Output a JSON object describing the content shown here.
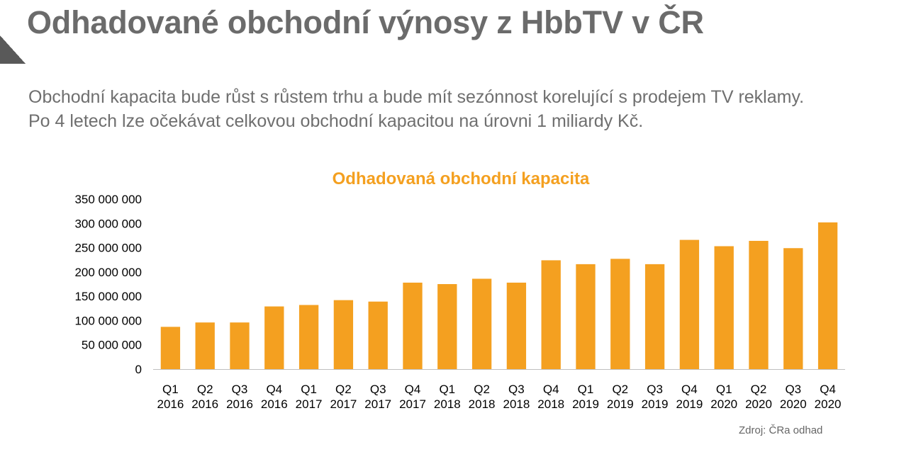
{
  "slide": {
    "title": "Odhadované obchodní výnosy z HbbTV v ČR",
    "subtitle_line1": "Obchodní kapacita bude růst s růstem trhu a bude mít sezónnost korelující s prodejem TV reklamy.",
    "subtitle_line2": "Po 4 letech lze očekávat celkovou obchodní kapacitou na úrovni 1 miliardy Kč.",
    "source": "Zdroj: ČRa odhad"
  },
  "colors": {
    "bar": "#F4A020",
    "title": "#6B6B6B",
    "chart_title": "#F4A020"
  },
  "chart_data": {
    "type": "bar",
    "title": "Odhadovaná obchodní kapacita",
    "xlabel": "",
    "ylabel": "",
    "ylim": [
      0,
      350000000
    ],
    "yticks": [
      "0",
      "50 000 000",
      "100 000 000",
      "150 000 000",
      "200 000 000",
      "250 000 000",
      "300 000 000",
      "350 000 000"
    ],
    "yticks_values": [
      0,
      50000000,
      100000000,
      150000000,
      200000000,
      250000000,
      300000000,
      350000000
    ],
    "grid": false,
    "categories": [
      [
        "Q1",
        "2016"
      ],
      [
        "Q2",
        "2016"
      ],
      [
        "Q3",
        "2016"
      ],
      [
        "Q4",
        "2016"
      ],
      [
        "Q1",
        "2017"
      ],
      [
        "Q2",
        "2017"
      ],
      [
        "Q3",
        "2017"
      ],
      [
        "Q4",
        "2017"
      ],
      [
        "Q1",
        "2018"
      ],
      [
        "Q2",
        "2018"
      ],
      [
        "Q3",
        "2018"
      ],
      [
        "Q4",
        "2018"
      ],
      [
        "Q1",
        "2019"
      ],
      [
        "Q2",
        "2019"
      ],
      [
        "Q3",
        "2019"
      ],
      [
        "Q4",
        "2019"
      ],
      [
        "Q1",
        "2020"
      ],
      [
        "Q2",
        "2020"
      ],
      [
        "Q3",
        "2020"
      ],
      [
        "Q4",
        "2020"
      ]
    ],
    "values": [
      87000000,
      96000000,
      96000000,
      129000000,
      132000000,
      142000000,
      139000000,
      178000000,
      175000000,
      186000000,
      178000000,
      224000000,
      216000000,
      227000000,
      216000000,
      266000000,
      253000000,
      264000000,
      249000000,
      302000000
    ]
  }
}
